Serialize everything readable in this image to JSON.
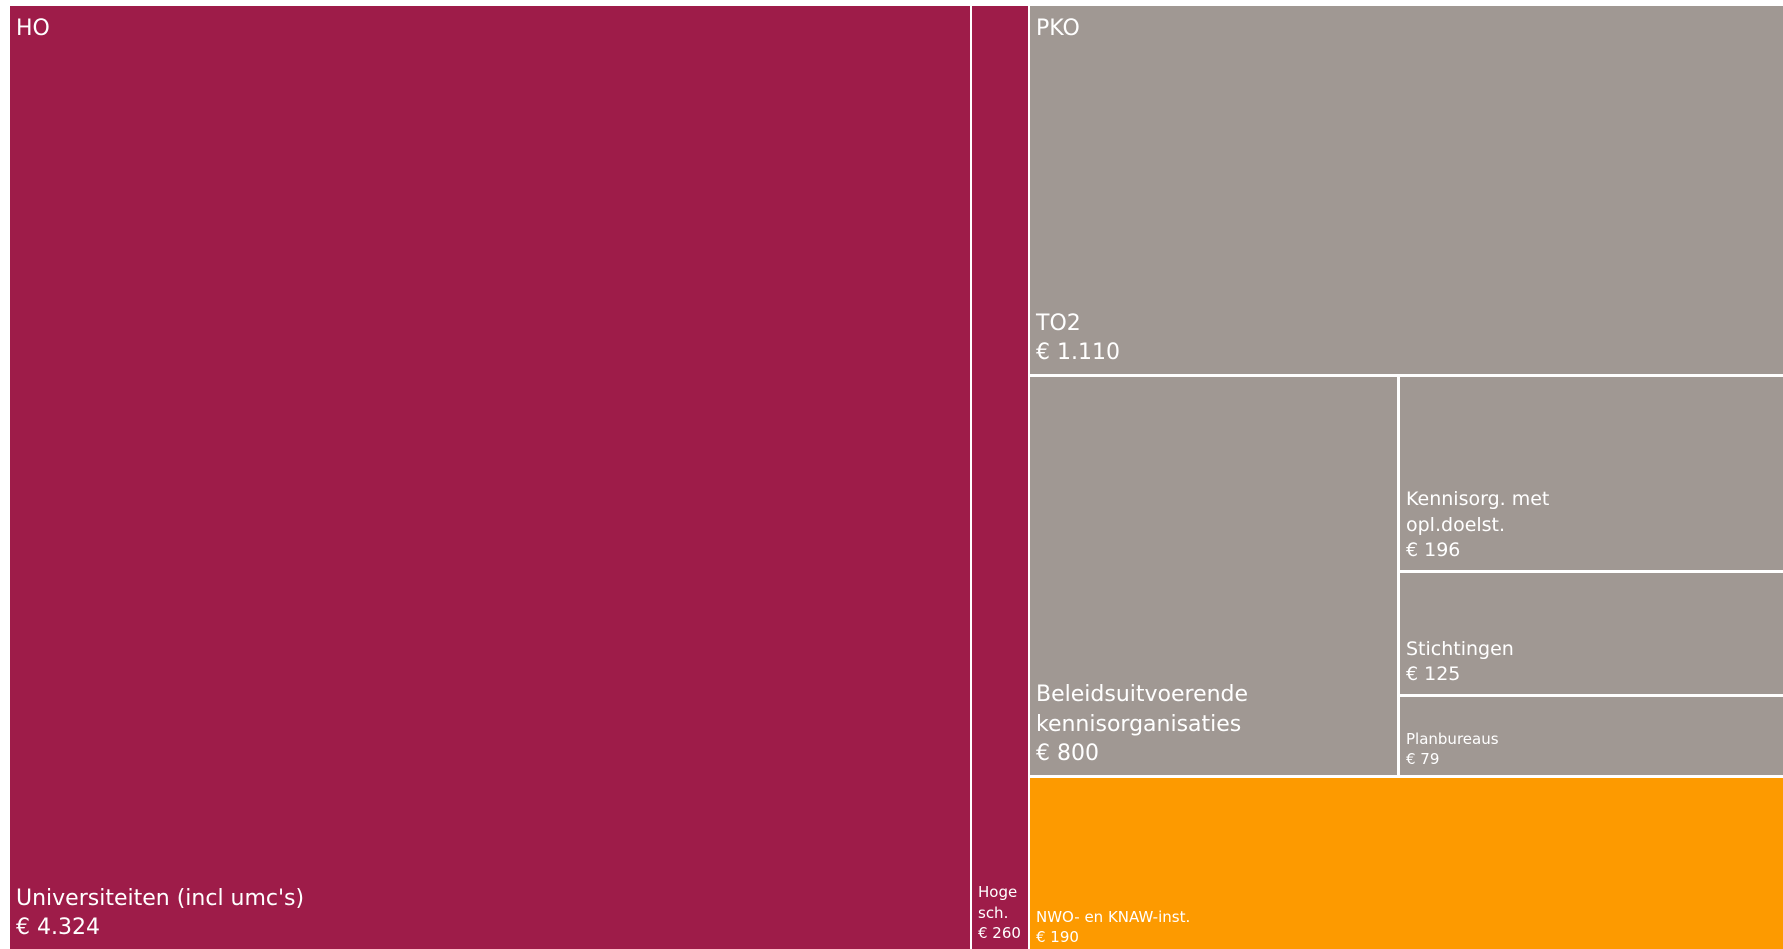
{
  "chart_data": {
    "type": "treemap",
    "currency": "€",
    "groups": [
      {
        "name": "HO",
        "color": "#9e1c49",
        "items": [
          {
            "label_lines": [
              "Universiteiten (incl umc's)"
            ],
            "value_text": "€ 4.324",
            "value": 4324
          },
          {
            "label_lines": [
              "Hoge",
              "sch."
            ],
            "value_text": "€ 260",
            "value": 260
          }
        ]
      },
      {
        "name": "PKO",
        "color": "#a09893",
        "items": [
          {
            "label_lines": [
              "TO2"
            ],
            "value_text": "€ 1.110",
            "value": 1110
          },
          {
            "label_lines": [
              "Beleidsuitvoerende",
              "kennisorganisaties"
            ],
            "value_text": "€ 800",
            "value": 800
          },
          {
            "label_lines": [
              "Kennisorg. met",
              "opl.doelst."
            ],
            "value_text": "€ 196",
            "value": 196
          },
          {
            "label_lines": [
              "Stichtingen"
            ],
            "value_text": "€ 125",
            "value": 125
          },
          {
            "label_lines": [
              "Planbureaus"
            ],
            "value_text": "€ 79",
            "value": 79
          }
        ]
      },
      {
        "name": "",
        "color": "#fd9a00",
        "items": [
          {
            "label_lines": [
              "NWO- en KNAW-inst."
            ],
            "value_text": "€ 190",
            "value": 190
          }
        ]
      }
    ]
  }
}
